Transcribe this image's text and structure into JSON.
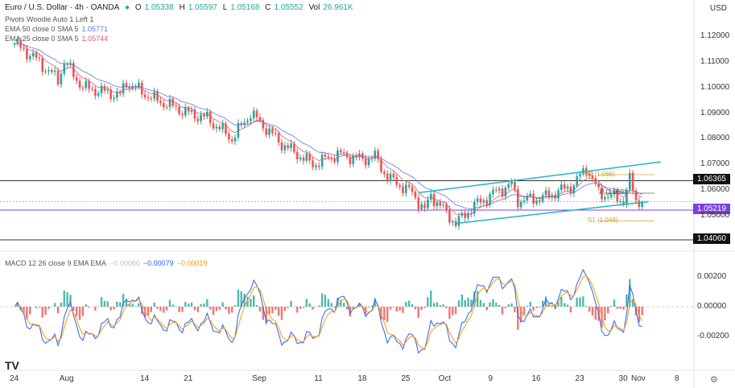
{
  "header": {
    "title": "Euro / U.S. Dollar · 4h · OANDA",
    "o_label": "O",
    "o": "1.05338",
    "h_label": "H",
    "h": "1.05597",
    "l_label": "L",
    "l": "1.05168",
    "c_label": "C",
    "c": "1.05552",
    "vol_label": "Vol",
    "vol": "26.961K",
    "currency": "USD"
  },
  "indicators": {
    "pivots": "Pivots Woodie Auto 1 Left 1",
    "ema50_label": "EMA 50 close 0 SMA 5",
    "ema50": "1.05771",
    "ema25_label": "EMA 25 close 0 SMA 5",
    "ema25": "1.05744",
    "macd_label": "MACD 12 26 close 9 EMA EMA",
    "macd_hist": "−0.00060",
    "macd": "−0.00079",
    "macd_signal": "−0.00019"
  },
  "levels": {
    "resistance": "1.06365",
    "support": "1.04060",
    "current": "1.05219",
    "r1": "R1 (1.066)",
    "p": "P (1.059)",
    "s1": "S1 (1.048)"
  },
  "colors": {
    "up": "#26a69a",
    "down": "#ef5350",
    "channel": "#1fb5c9",
    "ema50": "#5b7bd5",
    "ema25": "#d0607a",
    "macd": "#2962ff",
    "signal": "#ff9800",
    "current": "#7b3fe4"
  },
  "chart_data": {
    "type": "candlestick",
    "symbol": "EURUSD",
    "timeframe": "4h",
    "ylim": [
      1.035,
      1.125
    ],
    "yticks": [
      1.12,
      1.11,
      1.1,
      1.09,
      1.08,
      1.07,
      1.06,
      1.05
    ],
    "ytick_labels": [
      "1.12000",
      "1.11000",
      "1.10000",
      "1.09000",
      "1.08000",
      "1.07000",
      "1.06000",
      "1.05000"
    ],
    "macd_yticks": [
      0.002,
      0,
      -0.002
    ],
    "macd_ytick_labels": [
      "0.00200",
      "0.00000",
      "-0.00200"
    ],
    "xtick_labels": [
      {
        "d": "07-24",
        "t": "24"
      },
      {
        "d": "08-01",
        "t": "Aug"
      },
      {
        "d": "08-14",
        "t": "14"
      },
      {
        "d": "08-21",
        "t": "21"
      },
      {
        "d": "09-01",
        "t": "Sep"
      },
      {
        "d": "09-11",
        "t": "11"
      },
      {
        "d": "09-18",
        "t": "18"
      },
      {
        "d": "09-25",
        "t": "25"
      },
      {
        "d": "10-01",
        "t": "Oct"
      },
      {
        "d": "10-09",
        "t": "9"
      },
      {
        "d": "10-16",
        "t": "16"
      },
      {
        "d": "10-23",
        "t": "23"
      },
      {
        "d": "10-30",
        "t": "30"
      },
      {
        "d": "11-01",
        "t": "Nov"
      },
      {
        "d": "11-08",
        "t": "8"
      }
    ],
    "approx_close_path": [
      [
        "07-24",
        1.117
      ],
      [
        "07-27",
        1.112
      ],
      [
        "07-31",
        1.103
      ],
      [
        "08-01",
        1.11
      ],
      [
        "08-04",
        1.1
      ],
      [
        "08-10",
        1.097
      ],
      [
        "08-11",
        1.102
      ],
      [
        "08-15",
        1.096
      ],
      [
        "08-21",
        1.09
      ],
      [
        "08-24",
        1.088
      ],
      [
        "08-28",
        1.08
      ],
      [
        "08-31",
        1.09
      ],
      [
        "09-05",
        1.078
      ],
      [
        "09-10",
        1.07
      ],
      [
        "09-14",
        1.074
      ],
      [
        "09-18",
        1.072
      ],
      [
        "09-20",
        1.073
      ],
      [
        "09-22",
        1.065
      ],
      [
        "09-26",
        1.059
      ],
      [
        "09-28",
        1.052
      ],
      [
        "09-29",
        1.058
      ],
      [
        "10-03",
        1.047
      ],
      [
        "10-06",
        1.054
      ],
      [
        "10-10",
        1.06
      ],
      [
        "10-12",
        1.062
      ],
      [
        "10-13",
        1.056
      ],
      [
        "10-17",
        1.057
      ],
      [
        "10-22",
        1.062
      ],
      [
        "10-24",
        1.069
      ],
      [
        "10-26",
        1.059
      ],
      [
        "10-30",
        1.056
      ],
      [
        "10-31",
        1.064
      ],
      [
        "11-01",
        1.056
      ],
      [
        "11-02",
        1.0555
      ]
    ],
    "channel": {
      "upper": [
        [
          "09-27",
          1.059
        ],
        [
          "11-05",
          1.071
        ]
      ],
      "lower": [
        [
          "10-03",
          1.047
        ],
        [
          "11-03",
          1.0555
        ]
      ]
    }
  }
}
